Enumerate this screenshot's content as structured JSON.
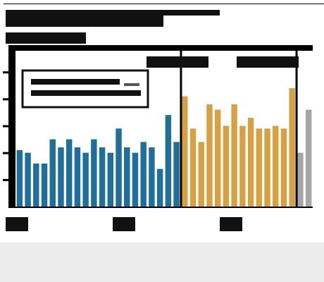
{
  "chart_data": {
    "type": "bar",
    "title": "",
    "subtitle": "",
    "xlabel": "",
    "ylabel": "",
    "ylim": [
      0,
      6
    ],
    "grid": false,
    "legend": "top-left",
    "colors": {
      "blue": "#1f6f9a",
      "gold": "#d7a143",
      "gray": "#a6a6a6",
      "ink": "#111111",
      "legend_box": "#ffffff"
    },
    "bars": [
      {
        "value": 2.1,
        "group": "blue"
      },
      {
        "value": 2.0,
        "group": "blue"
      },
      {
        "value": 1.6,
        "group": "blue"
      },
      {
        "value": 1.6,
        "group": "blue"
      },
      {
        "value": 2.5,
        "group": "blue"
      },
      {
        "value": 2.2,
        "group": "blue"
      },
      {
        "value": 2.5,
        "group": "blue"
      },
      {
        "value": 2.2,
        "group": "blue"
      },
      {
        "value": 2.0,
        "group": "blue"
      },
      {
        "value": 2.5,
        "group": "blue"
      },
      {
        "value": 2.2,
        "group": "blue"
      },
      {
        "value": 2.0,
        "group": "blue"
      },
      {
        "value": 2.9,
        "group": "blue"
      },
      {
        "value": 2.2,
        "group": "blue"
      },
      {
        "value": 2.0,
        "group": "blue"
      },
      {
        "value": 2.4,
        "group": "blue"
      },
      {
        "value": 2.2,
        "group": "blue"
      },
      {
        "value": 1.4,
        "group": "blue"
      },
      {
        "value": 3.4,
        "group": "blue"
      },
      {
        "value": 2.4,
        "group": "blue"
      },
      {
        "value": 4.1,
        "group": "gold"
      },
      {
        "value": 2.9,
        "group": "gold"
      },
      {
        "value": 2.4,
        "group": "gold"
      },
      {
        "value": 3.8,
        "group": "gold"
      },
      {
        "value": 3.6,
        "group": "gold"
      },
      {
        "value": 3.0,
        "group": "gold"
      },
      {
        "value": 3.8,
        "group": "gold"
      },
      {
        "value": 3.0,
        "group": "gold"
      },
      {
        "value": 3.3,
        "group": "gold"
      },
      {
        "value": 2.9,
        "group": "gold"
      },
      {
        "value": 2.9,
        "group": "gold"
      },
      {
        "value": 3.0,
        "group": "gold"
      },
      {
        "value": 2.9,
        "group": "gold"
      },
      {
        "value": 4.4,
        "group": "gold"
      },
      {
        "value": 2.0,
        "group": "gray"
      },
      {
        "value": 3.6,
        "group": "gray"
      }
    ]
  }
}
